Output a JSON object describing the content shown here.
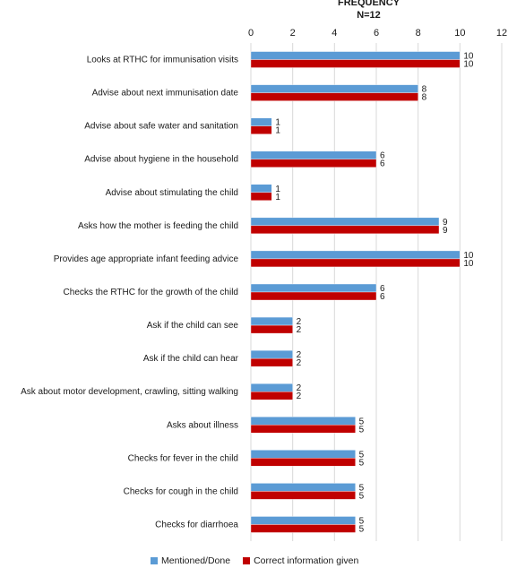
{
  "chart_data": {
    "type": "bar",
    "orientation": "horizontal",
    "title": "FREQUENCY",
    "subtitle": "N=12",
    "xlim": [
      0,
      12
    ],
    "xticks": [
      0,
      2,
      4,
      6,
      8,
      10,
      12
    ],
    "grid": true,
    "legend_position": "bottom",
    "categories": [
      "Looks at RTHC for immunisation visits",
      "Advise about next immunisation date",
      "Advise about safe water and sanitation",
      "Advise about hygiene  in the household",
      "Advise about stimulating the child",
      "Asks how the mother is feeding the child",
      "Provides age appropriate infant feeding advice",
      "Checks the RTHC for the growth of the child",
      "Ask if the child can see",
      "Ask if the child can hear",
      "Ask about motor development, crawling, sitting walking",
      "Asks about illness",
      "Checks for fever in the child",
      "Checks for cough in the child",
      "Checks for diarrhoea"
    ],
    "series": [
      {
        "name": "Mentioned/Done",
        "color": "#5b9bd5",
        "values": [
          10,
          8,
          1,
          6,
          1,
          9,
          10,
          6,
          2,
          2,
          2,
          5,
          5,
          5,
          5
        ]
      },
      {
        "name": "Correct information given",
        "color": "#c00000",
        "values": [
          10,
          8,
          1,
          6,
          1,
          9,
          10,
          6,
          2,
          2,
          2,
          5,
          5,
          5,
          5
        ]
      }
    ]
  }
}
